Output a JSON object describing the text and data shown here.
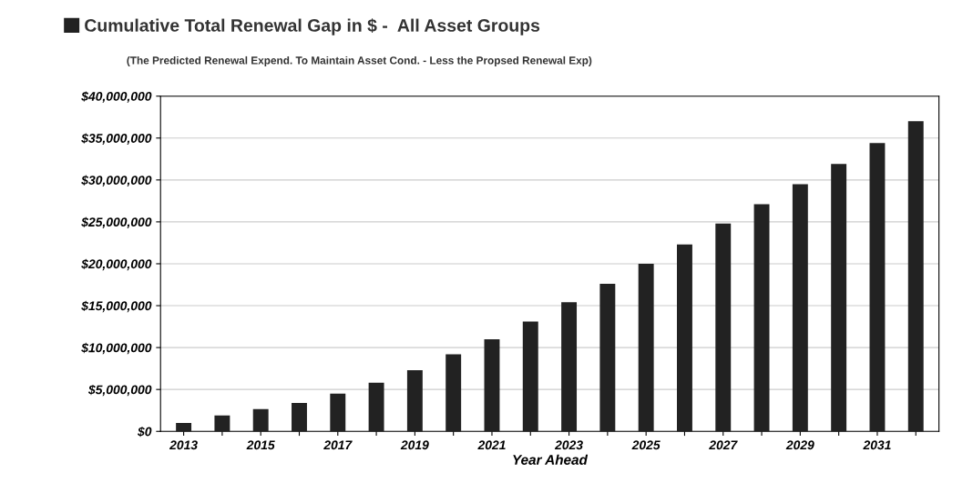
{
  "chart_data": {
    "type": "bar",
    "subtitle": "(The Predicted Renewal Expend. To Maintain Asset Cond. - Less the Propsed Renewal Exp)",
    "xlabel": "Year Ahead",
    "categories": [
      "2013",
      null,
      "2015",
      null,
      "2017",
      null,
      "2019",
      null,
      "2021",
      null,
      "2023",
      null,
      "2025",
      null,
      "2027",
      null,
      "2029",
      null,
      "2031",
      null
    ],
    "series": [
      {
        "name": "Cumulative Total Renewal Gap in $ -  All Asset Groups",
        "color": "#222222",
        "values": [
          1000000,
          1900000,
          2650000,
          3400000,
          4500000,
          5800000,
          7300000,
          9200000,
          11000000,
          13100000,
          15400000,
          17600000,
          20000000,
          22300000,
          24800000,
          27100000,
          29500000,
          31900000,
          34400000,
          37000000
        ]
      }
    ],
    "ylim": [
      0,
      40000000
    ],
    "yticks": [
      {
        "value": 0,
        "label": "$0"
      },
      {
        "value": 5000000,
        "label": "$5,000,000"
      },
      {
        "value": 10000000,
        "label": "$10,000,000"
      },
      {
        "value": 15000000,
        "label": "$15,000,000"
      },
      {
        "value": 20000000,
        "label": "$20,000,000"
      },
      {
        "value": 25000000,
        "label": "$25,000,000"
      },
      {
        "value": 30000000,
        "label": "$30,000,000"
      },
      {
        "value": 35000000,
        "label": "$35,000,000"
      },
      {
        "value": 40000000,
        "label": "$40,000,000"
      }
    ],
    "grid": "y",
    "legend": "top left"
  }
}
